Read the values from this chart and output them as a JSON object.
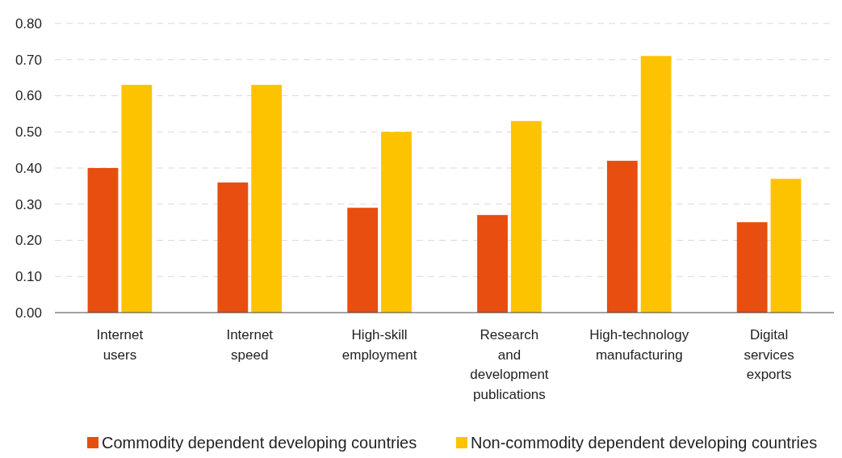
{
  "chart_data": {
    "type": "bar",
    "categories": [
      "Internet users",
      "Internet speed",
      "High-skill employment",
      "Research and development publications",
      "High-technology manufacturing",
      "Digital services exports"
    ],
    "series": [
      {
        "name": "Commodity dependent developing countries",
        "color": "#e84e0f",
        "values": [
          0.4,
          0.36,
          0.29,
          0.27,
          0.42,
          0.25
        ]
      },
      {
        "name": "Non-commodity dependent developing countries",
        "color": "#fdc300",
        "values": [
          0.63,
          0.63,
          0.5,
          0.53,
          0.71,
          0.37
        ]
      }
    ],
    "ylim": [
      0,
      0.8
    ],
    "yticks": [
      {
        "value": 0,
        "label": "0.00"
      },
      {
        "value": 0.1,
        "label": "0.10"
      },
      {
        "value": 0.2,
        "label": "0.20"
      },
      {
        "value": 0.3,
        "label": "0.30"
      },
      {
        "value": 0.4,
        "label": "0.40"
      },
      {
        "value": 0.5,
        "label": "0.50"
      },
      {
        "value": 0.6,
        "label": "0.60"
      },
      {
        "value": 0.7,
        "label": "0.70"
      },
      {
        "value": 0.8,
        "label": "0.80"
      }
    ],
    "grid": "y",
    "legend": "bottom"
  }
}
